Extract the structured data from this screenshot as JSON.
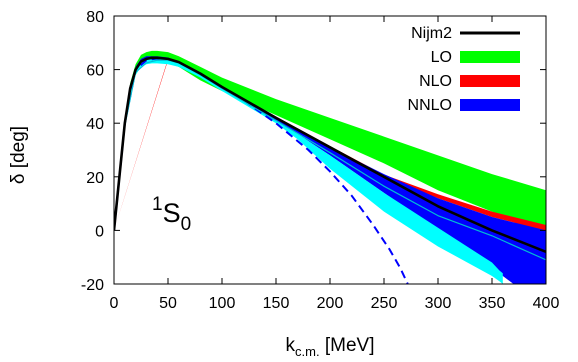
{
  "chart_data": {
    "type": "line",
    "xlabel_main": "k",
    "xlabel_sub": "c.m.",
    "xlabel_unit": " [MeV]",
    "ylabel": "δ [deg]",
    "xlim": [
      0,
      400
    ],
    "ylim": [
      -20,
      80
    ],
    "xticks": [
      0,
      50,
      100,
      150,
      200,
      250,
      300,
      350,
      400
    ],
    "yticks": [
      -20,
      0,
      20,
      40,
      60,
      80
    ],
    "grid": false,
    "legend_position": "top-right",
    "annotation": {
      "superscript": "1",
      "main": "S",
      "subscript": "0"
    },
    "series": [
      {
        "name": "LO",
        "kind": "band",
        "color": "#00ff00",
        "x": [
          0,
          5,
          10,
          15,
          20,
          25,
          30,
          35,
          40,
          50,
          60,
          80,
          100,
          150,
          200,
          250,
          300,
          350,
          400
        ],
        "lower": [
          0,
          18,
          38,
          51,
          58,
          61.5,
          62.5,
          63,
          63,
          62.5,
          61,
          56,
          52,
          43,
          34,
          25,
          15,
          7,
          -1
        ],
        "upper": [
          0,
          22,
          42,
          55,
          62,
          65.5,
          66.5,
          67,
          67,
          66.5,
          65,
          61,
          57,
          49,
          42,
          35,
          28,
          21,
          15
        ]
      },
      {
        "name": "NLO",
        "kind": "band",
        "color": "#ff0000",
        "x": [
          0,
          50,
          100,
          150,
          200,
          250,
          300,
          350,
          370,
          380,
          400
        ],
        "lower": [
          0,
          63.5,
          53,
          42,
          31,
          20,
          12,
          5,
          3,
          1.5,
          -1
        ],
        "upper": [
          0,
          64.0,
          53.5,
          42.5,
          31.5,
          20.8,
          13.5,
          7,
          5,
          4,
          2
        ]
      },
      {
        "name": "NNLO",
        "kind": "band",
        "color": "#0000ff",
        "x": [
          0,
          5,
          10,
          15,
          20,
          25,
          30,
          35,
          40,
          50,
          60,
          80,
          100,
          150,
          170,
          200,
          250,
          300,
          350,
          370,
          380,
          400
        ],
        "lower": [
          0,
          19,
          39,
          52,
          59,
          62,
          63,
          63.5,
          63.5,
          63.2,
          62,
          58,
          53,
          41,
          36,
          28,
          14,
          0,
          -14,
          -20,
          -20,
          -20
        ],
        "upper": [
          0,
          21,
          41,
          54,
          61,
          64,
          65,
          65,
          65,
          64.5,
          63,
          58.5,
          53.5,
          42,
          38,
          31,
          21,
          12,
          5,
          3,
          2,
          0
        ]
      },
      {
        "name": "",
        "kind": "band",
        "color": "#00ffff",
        "x": [
          0,
          5,
          10,
          15,
          20,
          25,
          30,
          35,
          40,
          50,
          60,
          80,
          100,
          150,
          170,
          200,
          250,
          300,
          350,
          357,
          360
        ],
        "lower": [
          0,
          19,
          38,
          51,
          58,
          61,
          62,
          62.3,
          62.3,
          62,
          61,
          57,
          52,
          40,
          34,
          23,
          7,
          -6,
          -17,
          -19,
          -20
        ],
        "upper": [
          0,
          21,
          40,
          53,
          60,
          63,
          64,
          64.3,
          64.3,
          64,
          62.5,
          58.2,
          53.2,
          41,
          36,
          28,
          14,
          1,
          -12,
          -15,
          -16
        ]
      },
      {
        "name": "",
        "kind": "line",
        "color": "#0000ff",
        "width": 2,
        "dash": "8,5",
        "x": [
          0,
          10,
          20,
          30,
          40,
          50,
          60,
          80,
          100,
          120,
          150,
          180,
          200,
          220,
          240,
          255,
          265,
          272
        ],
        "y": [
          0,
          40,
          60,
          63.5,
          64.2,
          64,
          62.8,
          58.5,
          53.5,
          48.5,
          40,
          30,
          22,
          13,
          2,
          -7,
          -14,
          -20
        ]
      },
      {
        "name": "",
        "kind": "line",
        "color": "#00bcd4",
        "width": 1.2,
        "dash": "",
        "x": [
          0,
          10,
          20,
          30,
          40,
          50,
          60,
          80,
          100,
          150,
          200,
          250,
          300,
          350,
          400
        ],
        "y": [
          0,
          39,
          59,
          62.5,
          63.5,
          63.5,
          62.5,
          58,
          53,
          41,
          29,
          16.5,
          5.5,
          -2,
          -11
        ]
      },
      {
        "name": "Nijm2",
        "kind": "line",
        "color": "#000000",
        "width": 2.6,
        "dash": "",
        "x": [
          0,
          5,
          10,
          15,
          20,
          25,
          30,
          35,
          40,
          50,
          60,
          80,
          100,
          150,
          200,
          250,
          300,
          350,
          400
        ],
        "y": [
          0,
          20,
          40,
          53,
          60,
          63,
          64,
          64.4,
          64.4,
          64,
          62.8,
          58.5,
          53.5,
          42,
          31,
          20,
          9,
          0,
          -8
        ]
      }
    ]
  }
}
